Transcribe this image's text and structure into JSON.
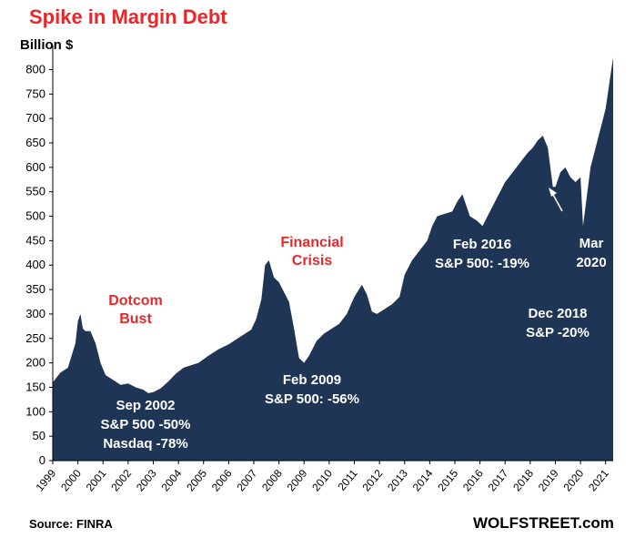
{
  "chart_data": {
    "type": "area",
    "title": "Spike in Margin Debt",
    "ylabel": "Billion $",
    "ylim": [
      0,
      840
    ],
    "yticks": [
      0,
      50,
      100,
      150,
      200,
      250,
      300,
      350,
      400,
      450,
      500,
      550,
      600,
      650,
      700,
      750,
      800
    ],
    "xticks": [
      "1999",
      "2000",
      "2001",
      "2002",
      "2003",
      "2004",
      "2005",
      "2006",
      "2007",
      "2008",
      "2009",
      "2010",
      "2011",
      "2012",
      "2013",
      "2014",
      "2015",
      "2016",
      "2017",
      "2018",
      "2019",
      "2020",
      "2021"
    ],
    "x": [
      1999.0,
      1999.3,
      1999.6,
      1999.9,
      2000.0,
      2000.1,
      2000.2,
      2000.3,
      2000.5,
      2000.7,
      2000.9,
      2001.1,
      2001.4,
      2001.7,
      2002.0,
      2002.3,
      2002.6,
      2002.8,
      2003.0,
      2003.3,
      2003.6,
      2003.9,
      2004.2,
      2004.5,
      2004.8,
      2005.2,
      2005.6,
      2006.0,
      2006.3,
      2006.6,
      2006.9,
      2007.1,
      2007.3,
      2007.45,
      2007.6,
      2007.8,
      2008.0,
      2008.2,
      2008.4,
      2008.6,
      2008.8,
      2009.0,
      2009.2,
      2009.5,
      2009.8,
      2010.1,
      2010.4,
      2010.7,
      2011.0,
      2011.3,
      2011.5,
      2011.7,
      2011.9,
      2012.2,
      2012.5,
      2012.8,
      2013.0,
      2013.3,
      2013.6,
      2013.9,
      2014.1,
      2014.3,
      2014.6,
      2014.9,
      2015.1,
      2015.3,
      2015.6,
      2015.9,
      2016.1,
      2016.4,
      2016.7,
      2017.0,
      2017.3,
      2017.6,
      2017.9,
      2018.1,
      2018.3,
      2018.5,
      2018.7,
      2018.9,
      2019.0,
      2019.2,
      2019.4,
      2019.6,
      2019.8,
      2020.0,
      2020.1,
      2020.2,
      2020.4,
      2020.6,
      2020.8,
      2021.0,
      2021.2,
      2021.3
    ],
    "values": [
      160,
      180,
      190,
      240,
      285,
      300,
      270,
      265,
      265,
      240,
      200,
      175,
      165,
      155,
      158,
      150,
      145,
      138,
      140,
      148,
      162,
      178,
      190,
      195,
      200,
      215,
      228,
      238,
      248,
      258,
      268,
      290,
      330,
      400,
      410,
      375,
      365,
      345,
      325,
      270,
      210,
      200,
      215,
      245,
      260,
      270,
      280,
      300,
      335,
      360,
      340,
      305,
      300,
      310,
      320,
      335,
      380,
      410,
      430,
      450,
      480,
      500,
      505,
      510,
      530,
      545,
      500,
      490,
      480,
      510,
      540,
      570,
      590,
      610,
      630,
      640,
      655,
      665,
      640,
      560,
      560,
      590,
      600,
      580,
      570,
      580,
      480,
      520,
      600,
      640,
      680,
      720,
      790,
      825
    ],
    "annotations": [
      {
        "id": "dotcom",
        "lines": [
          "Dotcom",
          "Bust"
        ],
        "style": "red"
      },
      {
        "id": "financial",
        "lines": [
          "Financial",
          "Crisis"
        ],
        "style": "red"
      },
      {
        "id": "sep2002",
        "lines": [
          "Sep 2002",
          "S&P 500 -50%",
          "Nasdaq -78%"
        ],
        "style": "white"
      },
      {
        "id": "feb2009",
        "lines": [
          "Feb 2009",
          "S&P 500: -56%"
        ],
        "style": "white"
      },
      {
        "id": "feb2016",
        "lines": [
          "Feb 2016",
          "S&P 500: -19%"
        ],
        "style": "white"
      },
      {
        "id": "dec2018",
        "lines": [
          "Dec 2018",
          "S&P -20%"
        ],
        "style": "white"
      },
      {
        "id": "mar2020",
        "lines": [
          "Mar",
          "2020"
        ],
        "style": "white"
      }
    ],
    "grid": false,
    "fill_color": "#1f3556"
  },
  "footer": {
    "source": "Source: FINRA",
    "brand": "WOLFSTREET.com"
  }
}
